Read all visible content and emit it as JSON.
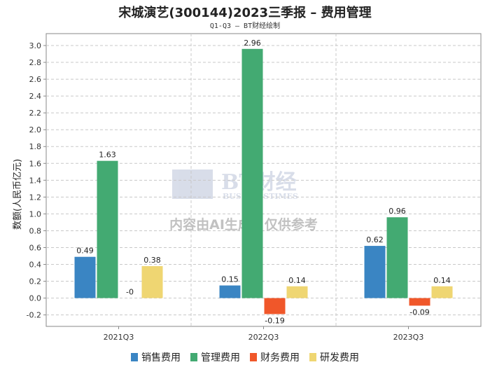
{
  "chart_data": {
    "type": "bar",
    "title": "宋城演艺(300144)2023三季报 – 费用管理",
    "subtitle": "Q1-Q3 – BT财经绘制",
    "xlabel": "",
    "ylabel": "数额(人民币亿元)",
    "categories": [
      "2021Q3",
      "2022Q3",
      "2023Q3"
    ],
    "ylim": [
      -0.3,
      3.1
    ],
    "yticks": [
      -0.2,
      0.0,
      0.2,
      0.4,
      0.6,
      0.8,
      1.0,
      1.2,
      1.4,
      1.6,
      1.8,
      2.0,
      2.2,
      2.4,
      2.6,
      2.8,
      3.0
    ],
    "ytick_labels": [
      "-0.2",
      "0.0",
      "0.2",
      "0.4",
      "0.6",
      "0.8",
      "1.0",
      "1.2",
      "1.4",
      "1.6",
      "1.8",
      "2.0",
      "2.2",
      "2.4",
      "2.6",
      "2.8",
      "3.0"
    ],
    "grid": true,
    "legend_position": "bottom",
    "series": [
      {
        "name": "销售费用",
        "color": "#3a85c3",
        "values": [
          0.49,
          0.15,
          0.62
        ],
        "labels": [
          "0.49",
          "0.15",
          "0.62"
        ]
      },
      {
        "name": "管理费用",
        "color": "#43aa72",
        "values": [
          1.63,
          2.96,
          0.96
        ],
        "labels": [
          "1.63",
          "2.96",
          "0.96"
        ]
      },
      {
        "name": "财务费用",
        "color": "#f0572a",
        "values": [
          0,
          -0.19,
          -0.09
        ],
        "labels": [
          "-0",
          "-0.19",
          "-0.09"
        ]
      },
      {
        "name": "研发费用",
        "color": "#efd672",
        "values": [
          0.38,
          0.14,
          0.14
        ],
        "labels": [
          "0.38",
          "0.14",
          "0.14"
        ]
      }
    ],
    "watermark": {
      "logo": "BT财经",
      "logo_sub": "BUSINESSTIMES",
      "text": "内容由AI生成，仅供参考"
    }
  }
}
